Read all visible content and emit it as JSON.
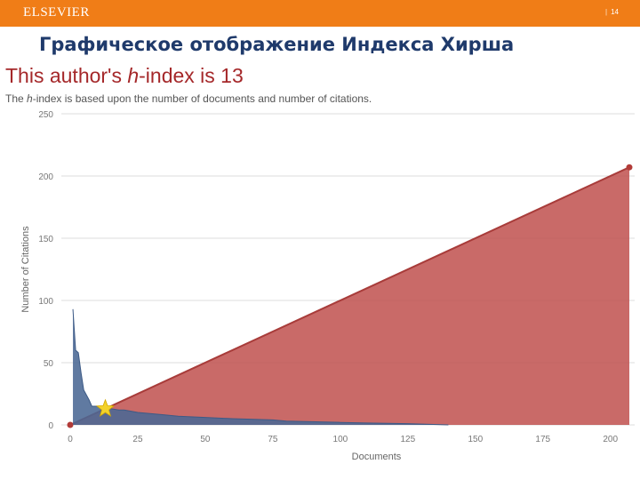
{
  "header": {
    "brand": "ELSEVIER",
    "page_number": "14"
  },
  "slide_title": "Графическое отображение Индекса Хирша",
  "chart_data": {
    "type": "area",
    "title_parts": {
      "before": "This author's ",
      "italic": "h",
      "after": "-index is 13"
    },
    "subtitle_parts": {
      "before": "The ",
      "italic": "h",
      "after": "-index is based upon the number of documents and number of citations."
    },
    "xlabel": "Documents",
    "ylabel": "Number of Citations",
    "xlim": [
      0,
      207
    ],
    "ylim": [
      0,
      250
    ],
    "x_ticks": [
      0,
      25,
      50,
      75,
      100,
      125,
      150,
      175,
      200
    ],
    "y_ticks": [
      0,
      50,
      100,
      150,
      200,
      250
    ],
    "grid": true,
    "h_index": 13,
    "series": [
      {
        "kind": "reference-line",
        "color": "#c0504d",
        "x": [
          0,
          207
        ],
        "y": [
          0,
          207
        ]
      },
      {
        "kind": "citations",
        "color": "#4a6894",
        "x": [
          1,
          2,
          3,
          4,
          5,
          6,
          7,
          8,
          9,
          10,
          11,
          12,
          13,
          15,
          18,
          20,
          25,
          30,
          35,
          40,
          50,
          60,
          75,
          80,
          100,
          110,
          125,
          140
        ],
        "y": [
          93,
          60,
          58,
          42,
          28,
          24,
          20,
          15,
          15,
          15,
          15,
          14,
          14,
          13,
          12,
          12,
          10,
          9,
          8,
          7,
          6,
          5,
          4,
          3,
          2,
          1.5,
          1,
          0
        ]
      }
    ]
  }
}
